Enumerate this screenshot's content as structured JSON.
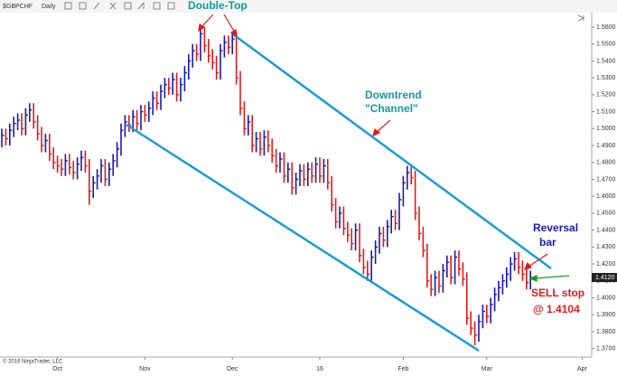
{
  "chart_data": {
    "type": "hlc",
    "symbol": "$GBPCHF",
    "interval": "Daily",
    "up_color": "#1a1aa8",
    "down_color": "#e01b1b",
    "categories": [
      null,
      null,
      null,
      null,
      null,
      null,
      null,
      null,
      null,
      null,
      null,
      null,
      null,
      null,
      "Oct",
      null,
      null,
      null,
      null,
      null,
      null,
      null,
      null,
      null,
      null,
      null,
      null,
      null,
      null,
      null,
      null,
      null,
      null,
      null,
      null,
      null,
      "Nov",
      null,
      null,
      null,
      null,
      null,
      null,
      null,
      null,
      null,
      null,
      null,
      null,
      null,
      null,
      null,
      null,
      null,
      null,
      null,
      null,
      null,
      "Dec",
      null,
      null,
      null,
      null,
      null,
      null,
      null,
      null,
      null,
      null,
      null,
      null,
      null,
      null,
      null,
      null,
      null,
      null,
      null,
      null,
      null,
      "16",
      null,
      null,
      null,
      null,
      null,
      null,
      null,
      null,
      null,
      null,
      null,
      null,
      null,
      null,
      null,
      null,
      null,
      null,
      null,
      null,
      "Feb",
      null,
      null,
      null,
      null,
      null,
      null,
      null,
      null,
      null,
      null,
      null,
      null,
      null,
      null,
      null,
      null,
      null,
      null,
      null,
      null,
      "Mar",
      null,
      null,
      null,
      null,
      null,
      null,
      null,
      null,
      null,
      null,
      null,
      null,
      null,
      null,
      null,
      null,
      null,
      null,
      null,
      null,
      null,
      null,
      null,
      "Apr",
      null
    ],
    "high": [
      1.5,
      1.5,
      1.503,
      1.507,
      1.509,
      1.509,
      1.512,
      1.515,
      1.515,
      1.508,
      1.501,
      1.497,
      1.497,
      1.489,
      1.484,
      1.482,
      1.485,
      1.485,
      1.481,
      1.483,
      1.487,
      1.487,
      1.482,
      1.472,
      1.476,
      1.482,
      1.482,
      1.48,
      1.485,
      1.492,
      1.503,
      1.508,
      1.508,
      1.511,
      1.511,
      1.514,
      1.514,
      1.516,
      1.522,
      1.522,
      1.526,
      1.53,
      1.53,
      1.533,
      1.533,
      1.53,
      1.537,
      1.544,
      1.55,
      1.55,
      1.56,
      1.56,
      1.553,
      1.547,
      1.543,
      1.55,
      1.555,
      1.555,
      1.557,
      1.557,
      1.534,
      1.516,
      1.508,
      1.508,
      1.498,
      1.498,
      1.499,
      1.499,
      1.494,
      1.488,
      1.486,
      1.486,
      1.48,
      1.48,
      1.474,
      1.479,
      1.479,
      1.48,
      1.48,
      1.483,
      1.483,
      1.482,
      1.482,
      1.472,
      1.459,
      1.454,
      1.454,
      1.445,
      1.441,
      1.444,
      1.444,
      1.429,
      1.422,
      1.428,
      1.434,
      1.442,
      1.442,
      1.446,
      1.452,
      1.452,
      1.462,
      1.472,
      1.478,
      1.478,
      1.475,
      1.454,
      1.442,
      1.432,
      1.414,
      1.416,
      1.416,
      1.42,
      1.425,
      1.425,
      1.428,
      1.428,
      1.421,
      1.415,
      1.392,
      1.386,
      1.39,
      1.396,
      1.396,
      1.4,
      1.406,
      1.41,
      1.414,
      1.418,
      1.424,
      1.427,
      1.427,
      1.422,
      1.418,
      1.416,
      null,
      null,
      null,
      null,
      null,
      null,
      null,
      null,
      null,
      null,
      null,
      null,
      null,
      null
    ],
    "low": [
      1.489,
      1.49,
      1.49,
      1.495,
      1.499,
      1.496,
      1.496,
      1.504,
      1.5,
      1.493,
      1.486,
      1.486,
      1.481,
      1.476,
      1.474,
      1.472,
      1.472,
      1.473,
      1.47,
      1.47,
      1.475,
      1.474,
      1.455,
      1.459,
      1.464,
      1.468,
      1.466,
      1.466,
      1.472,
      1.477,
      1.484,
      1.495,
      1.498,
      1.498,
      1.499,
      1.499,
      1.504,
      1.504,
      1.508,
      1.511,
      1.511,
      1.518,
      1.52,
      1.52,
      1.516,
      1.516,
      1.522,
      1.529,
      1.536,
      1.54,
      1.54,
      1.545,
      1.539,
      1.535,
      1.529,
      1.529,
      1.542,
      1.544,
      1.544,
      1.526,
      1.508,
      1.496,
      1.496,
      1.486,
      1.486,
      1.484,
      1.484,
      1.486,
      1.48,
      1.474,
      1.474,
      1.468,
      1.468,
      1.461,
      1.461,
      1.466,
      1.466,
      1.466,
      1.468,
      1.468,
      1.468,
      1.468,
      1.464,
      1.451,
      1.441,
      1.441,
      1.437,
      1.433,
      1.428,
      1.428,
      1.421,
      1.414,
      1.41,
      1.41,
      1.42,
      1.426,
      1.43,
      1.43,
      1.438,
      1.44,
      1.44,
      1.454,
      1.464,
      1.467,
      1.446,
      1.434,
      1.424,
      1.406,
      1.401,
      1.401,
      1.403,
      1.403,
      1.412,
      1.408,
      1.408,
      1.413,
      1.407,
      1.384,
      1.378,
      1.372,
      1.374,
      1.382,
      1.385,
      1.385,
      1.392,
      1.398,
      1.402,
      1.406,
      1.41,
      1.416,
      1.414,
      1.41,
      1.405,
      1.405,
      null,
      null,
      null,
      null,
      null,
      null,
      null,
      null,
      null,
      null,
      null,
      null,
      null,
      null
    ],
    "close": [
      1.496,
      1.494,
      1.499,
      1.503,
      1.505,
      1.5,
      1.508,
      1.511,
      1.504,
      1.497,
      1.49,
      1.493,
      1.485,
      1.48,
      1.478,
      1.476,
      1.481,
      1.477,
      1.474,
      1.479,
      1.483,
      1.478,
      1.463,
      1.468,
      1.472,
      1.478,
      1.47,
      1.476,
      1.481,
      1.488,
      1.499,
      1.504,
      1.502,
      1.507,
      1.503,
      1.51,
      1.508,
      1.512,
      1.518,
      1.515,
      1.522,
      1.526,
      1.524,
      1.529,
      1.52,
      1.526,
      1.533,
      1.54,
      1.546,
      1.544,
      1.556,
      1.549,
      1.543,
      1.539,
      1.533,
      1.546,
      1.551,
      1.548,
      1.553,
      1.53,
      1.512,
      1.5,
      1.504,
      1.49,
      1.494,
      1.488,
      1.495,
      1.49,
      1.484,
      1.478,
      1.482,
      1.472,
      1.476,
      1.465,
      1.47,
      1.475,
      1.47,
      1.476,
      1.472,
      1.479,
      1.472,
      1.478,
      1.468,
      1.455,
      1.445,
      1.45,
      1.441,
      1.437,
      1.432,
      1.44,
      1.425,
      1.418,
      1.414,
      1.424,
      1.43,
      1.438,
      1.434,
      1.442,
      1.448,
      1.444,
      1.458,
      1.468,
      1.474,
      1.471,
      1.45,
      1.438,
      1.428,
      1.41,
      1.405,
      1.412,
      1.407,
      1.416,
      1.421,
      1.412,
      1.424,
      1.417,
      1.411,
      1.388,
      1.382,
      1.378,
      1.386,
      1.392,
      1.389,
      1.396,
      1.402,
      1.406,
      1.41,
      1.414,
      1.42,
      1.423,
      1.418,
      1.414,
      1.409,
      1.412,
      null,
      null,
      null,
      null,
      null,
      null,
      null,
      null,
      null,
      null,
      null,
      null,
      null,
      null
    ],
    "ylim": [
      1.365,
      1.568
    ],
    "yticks": [
      {
        "value": 1.37,
        "label": "1.3700"
      },
      {
        "value": 1.38,
        "label": "1.3800"
      },
      {
        "value": 1.39,
        "label": "1.3900"
      },
      {
        "value": 1.4,
        "label": "1.4000"
      },
      {
        "value": 1.41,
        "label": "1.4100"
      },
      {
        "value": 1.42,
        "label": "1.4200"
      },
      {
        "value": 1.43,
        "label": "1.4300"
      },
      {
        "value": 1.44,
        "label": "1.4400"
      },
      {
        "value": 1.45,
        "label": "1.4500"
      },
      {
        "value": 1.46,
        "label": "1.4600"
      },
      {
        "value": 1.47,
        "label": "1.4700"
      },
      {
        "value": 1.48,
        "label": "1.4800"
      },
      {
        "value": 1.49,
        "label": "1.4900"
      },
      {
        "value": 1.5,
        "label": "1.5000"
      },
      {
        "value": 1.51,
        "label": "1.5100"
      },
      {
        "value": 1.52,
        "label": "1.5200"
      },
      {
        "value": 1.53,
        "label": "1.5300"
      },
      {
        "value": 1.54,
        "label": "1.5400"
      },
      {
        "value": 1.55,
        "label": "1.5500"
      },
      {
        "value": 1.56,
        "label": "1.5600"
      }
    ],
    "last_price": {
      "value": 1.412,
      "label": "1.4120"
    },
    "grid": false,
    "annotations": {
      "double_top": "Double-Top",
      "channel": [
        "Downtrend",
        "\"Channel\""
      ],
      "reversal": [
        "Reversal",
        "bar"
      ],
      "sell": [
        "SELL stop",
        "@ 1.4104"
      ]
    },
    "copyright": "© 2016 NinjaTrader, LLC"
  }
}
